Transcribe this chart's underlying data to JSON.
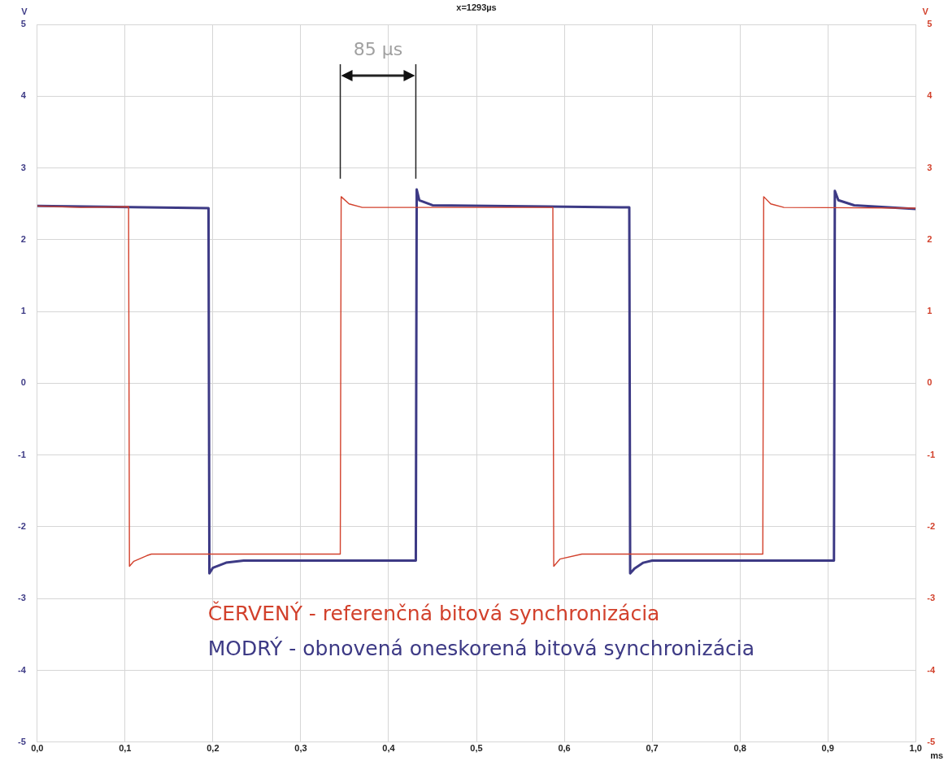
{
  "chart_data": {
    "type": "line",
    "title": "x=1293µs",
    "xlabel": "ms",
    "ylabel": "V",
    "y2label": "V",
    "xlim": [
      0,
      1
    ],
    "xticks": [
      {
        "value": 0,
        "label": "0,0"
      },
      {
        "value": 0.1,
        "label": "0,1"
      },
      {
        "value": 0.2,
        "label": "0,2"
      },
      {
        "value": 0.3,
        "label": "0,3"
      },
      {
        "value": 0.4,
        "label": "0,4"
      },
      {
        "value": 0.5,
        "label": "0,5"
      },
      {
        "value": 0.6,
        "label": "0,6"
      },
      {
        "value": 0.7,
        "label": "0,7"
      },
      {
        "value": 0.8,
        "label": "0,8"
      },
      {
        "value": 0.9,
        "label": "0,9"
      },
      {
        "value": 1,
        "label": "1,0"
      }
    ],
    "ylim": [
      -5,
      5
    ],
    "yticks": [
      -5,
      -4,
      -3,
      -2,
      -1,
      0,
      1,
      2,
      3,
      4,
      5
    ],
    "y2lim": [
      -5,
      5
    ],
    "y2ticks": [
      -5,
      -4,
      -3,
      -2,
      -1,
      0,
      1,
      2,
      3,
      4,
      5
    ],
    "grid": true,
    "legend": "bottom",
    "marker": "none",
    "line_style": "solid",
    "annotations": [
      "85 µs"
    ],
    "ref_lines": [
      {
        "axis": "x",
        "value": 0.345,
        "color": "#222222"
      },
      {
        "axis": "x",
        "value": 0.431,
        "color": "#222222"
      }
    ],
    "series": [
      {
        "name": "ČERVENÝ - referenčná bitová synchronizácia",
        "color": "#d2412c",
        "x": [
          0,
          0.05,
          0.104,
          0.105,
          0.11,
          0.125,
          0.13,
          0.345,
          0.346,
          0.355,
          0.37,
          0.587,
          0.588,
          0.595,
          0.62,
          0.826,
          0.827,
          0.835,
          0.85,
          1.0
        ],
        "values": [
          2.47,
          2.45,
          2.46,
          -2.55,
          -2.48,
          -2.4,
          -2.38,
          -2.38,
          2.6,
          2.5,
          2.45,
          2.45,
          -2.55,
          -2.45,
          -2.38,
          -2.38,
          2.6,
          2.5,
          2.45,
          2.44
        ]
      },
      {
        "name": "MODRÝ - obnovená oneskorená bitová synchronizácia",
        "color": "#3d3a85",
        "x": [
          0,
          0.195,
          0.196,
          0.2,
          0.215,
          0.235,
          0.431,
          0.432,
          0.435,
          0.45,
          0.674,
          0.675,
          0.68,
          0.69,
          0.7,
          0.907,
          0.908,
          0.912,
          0.93,
          1.0
        ],
        "values": [
          2.47,
          2.44,
          -2.65,
          -2.57,
          -2.5,
          -2.47,
          -2.47,
          2.7,
          2.55,
          2.48,
          2.45,
          -2.65,
          -2.58,
          -2.5,
          -2.47,
          -2.47,
          2.68,
          2.55,
          2.48,
          2.43
        ]
      }
    ]
  }
}
